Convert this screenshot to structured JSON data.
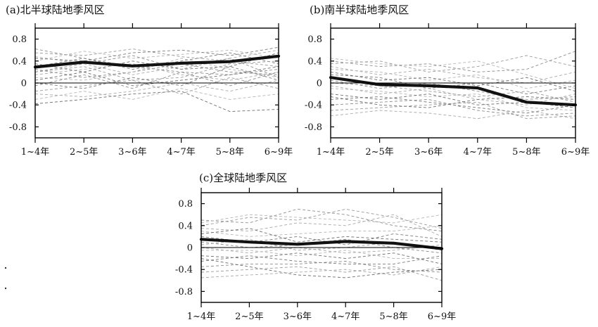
{
  "chart_data": [
    {
      "type": "line",
      "title": "(a)北半球陆地季风区",
      "categories": [
        "1~4年",
        "2~5年",
        "3~6年",
        "4~7年",
        "5~8年",
        "6~9年"
      ],
      "ylim": [
        -1.0,
        1.0
      ],
      "yticks": [
        0.8,
        0.4,
        0,
        -0.4,
        -0.8
      ],
      "ytick_labels": [
        "0.8",
        "0.4",
        "0",
        "-0.4",
        "-0.8"
      ],
      "grid": false,
      "series": [
        {
          "values": [
            0.29,
            0.38,
            0.31,
            0.36,
            0.39,
            0.49
          ],
          "style": "bold"
        },
        {
          "values": [
            0.62,
            0.45,
            0.3,
            0.2,
            0.15,
            0.25
          ],
          "style": "dashed"
        },
        {
          "values": [
            0.55,
            0.5,
            0.62,
            0.48,
            0.4,
            0.3
          ],
          "style": "dashed"
        },
        {
          "values": [
            0.48,
            0.35,
            0.15,
            0.3,
            0.45,
            0.6
          ],
          "style": "dashed"
        },
        {
          "values": [
            0.4,
            0.58,
            0.45,
            0.52,
            0.6,
            0.45
          ],
          "style": "dashed"
        },
        {
          "values": [
            0.35,
            0.2,
            0.4,
            0.25,
            0.3,
            0.55
          ],
          "style": "dashed"
        },
        {
          "values": [
            0.3,
            0.45,
            0.25,
            0.4,
            0.55,
            0.35
          ],
          "style": "dashed"
        },
        {
          "values": [
            0.25,
            0.1,
            0.2,
            0.35,
            0.2,
            0.15
          ],
          "style": "dashed"
        },
        {
          "values": [
            0.2,
            0.3,
            0.05,
            0.1,
            0.35,
            0.4
          ],
          "style": "dashed"
        },
        {
          "values": [
            0.15,
            0.25,
            0.35,
            0.15,
            0.05,
            0.2
          ],
          "style": "dashed"
        },
        {
          "values": [
            0.1,
            0.05,
            0.2,
            0.45,
            0.25,
            0.1
          ],
          "style": "dashed"
        },
        {
          "values": [
            0.05,
            0.2,
            -0.05,
            0.05,
            0.15,
            0.3
          ],
          "style": "dashed"
        },
        {
          "values": [
            0.0,
            -0.1,
            0.1,
            -0.05,
            0.3,
            0.05
          ],
          "style": "dashed"
        },
        {
          "values": [
            -0.05,
            0.15,
            -0.1,
            0.2,
            -0.05,
            0.2
          ],
          "style": "dashed"
        },
        {
          "values": [
            -0.15,
            -0.05,
            0.05,
            -0.2,
            0.1,
            -0.1
          ],
          "style": "dashed"
        },
        {
          "values": [
            -0.2,
            -0.25,
            -0.15,
            0.0,
            -0.15,
            0.05
          ],
          "style": "dashed"
        },
        {
          "values": [
            -0.3,
            -0.15,
            -0.3,
            -0.1,
            -0.3,
            -0.2
          ],
          "style": "dashed"
        },
        {
          "values": [
            -0.38,
            -0.3,
            -0.2,
            -0.15,
            -0.52,
            -0.48
          ],
          "style": "dashed"
        },
        {
          "values": [
            0.45,
            0.4,
            0.55,
            0.6,
            0.5,
            0.65
          ],
          "style": "dashed"
        },
        {
          "values": [
            0.2,
            0.35,
            0.5,
            0.25,
            0.45,
            0.1
          ],
          "style": "dashed"
        }
      ]
    },
    {
      "type": "line",
      "title": "(b)南半球陆地季风区",
      "categories": [
        "1~4年",
        "2~5年",
        "3~6年",
        "4~7年",
        "5~8年",
        "6~9年"
      ],
      "ylim": [
        -1.0,
        1.0
      ],
      "yticks": [
        0.8,
        0.4,
        0,
        -0.4,
        -0.8
      ],
      "ytick_labels": [
        "0.8",
        "0.4",
        "0",
        "-0.4",
        "-0.8"
      ],
      "grid": false,
      "series": [
        {
          "values": [
            0.1,
            -0.03,
            -0.05,
            -0.09,
            -0.35,
            -0.4
          ],
          "style": "bold"
        },
        {
          "values": [
            0.4,
            0.3,
            0.35,
            0.2,
            0.25,
            0.58
          ],
          "style": "dashed"
        },
        {
          "values": [
            0.35,
            0.4,
            0.2,
            0.3,
            0.5,
            0.3
          ],
          "style": "dashed"
        },
        {
          "values": [
            0.3,
            0.15,
            0.25,
            0.1,
            0.0,
            0.2
          ],
          "style": "dashed"
        },
        {
          "values": [
            0.25,
            0.2,
            0.05,
            0.15,
            -0.1,
            0.05
          ],
          "style": "dashed"
        },
        {
          "values": [
            0.2,
            0.05,
            0.1,
            -0.05,
            0.1,
            -0.15
          ],
          "style": "dashed"
        },
        {
          "values": [
            0.15,
            0.1,
            -0.1,
            0.0,
            -0.2,
            -0.05
          ],
          "style": "dashed"
        },
        {
          "values": [
            0.05,
            -0.1,
            0.0,
            -0.15,
            -0.3,
            -0.25
          ],
          "style": "dashed"
        },
        {
          "values": [
            0.0,
            -0.05,
            -0.15,
            -0.25,
            -0.15,
            -0.35
          ],
          "style": "dashed"
        },
        {
          "values": [
            -0.05,
            -0.2,
            -0.1,
            -0.3,
            -0.4,
            -0.2
          ],
          "style": "dashed"
        },
        {
          "values": [
            -0.1,
            -0.15,
            -0.25,
            -0.2,
            -0.45,
            -0.5
          ],
          "style": "dashed"
        },
        {
          "values": [
            -0.2,
            -0.3,
            -0.2,
            -0.4,
            -0.35,
            -0.45
          ],
          "style": "dashed"
        },
        {
          "values": [
            -0.3,
            -0.25,
            -0.35,
            -0.45,
            -0.55,
            -0.4
          ],
          "style": "dashed"
        },
        {
          "values": [
            -0.4,
            -0.35,
            -0.3,
            -0.5,
            -0.6,
            -0.55
          ],
          "style": "dashed"
        },
        {
          "values": [
            -0.5,
            -0.45,
            -0.4,
            -0.35,
            -0.65,
            -0.6
          ],
          "style": "dashed"
        },
        {
          "values": [
            -0.6,
            -0.5,
            -0.55,
            -0.65,
            -0.5,
            -0.65
          ],
          "style": "dashed"
        },
        {
          "values": [
            0.45,
            0.35,
            0.3,
            0.4,
            0.15,
            -0.1
          ],
          "style": "dashed"
        },
        {
          "values": [
            -0.25,
            -0.4,
            -0.45,
            -0.3,
            -0.25,
            -0.3
          ],
          "style": "dashed"
        }
      ]
    },
    {
      "type": "line",
      "title": "(c)全球陆地季风区",
      "categories": [
        "1~4年",
        "2~5年",
        "3~6年",
        "4~7年",
        "5~8年",
        "6~9年"
      ],
      "ylim": [
        -1.0,
        1.0
      ],
      "yticks": [
        0.8,
        0.4,
        0,
        -0.4,
        -0.8
      ],
      "ytick_labels": [
        "0.8",
        "0.4",
        "0",
        "-0.4",
        "-0.8"
      ],
      "grid": false,
      "series": [
        {
          "values": [
            0.15,
            0.1,
            0.06,
            0.11,
            0.08,
            -0.02
          ],
          "style": "bold"
        },
        {
          "values": [
            0.5,
            0.45,
            0.7,
            0.6,
            0.4,
            0.3
          ],
          "style": "dashed"
        },
        {
          "values": [
            0.4,
            0.55,
            0.5,
            0.7,
            0.55,
            0.35
          ],
          "style": "dashed"
        },
        {
          "values": [
            0.35,
            0.3,
            0.45,
            0.4,
            0.6,
            0.2
          ],
          "style": "dashed"
        },
        {
          "values": [
            0.3,
            0.2,
            0.25,
            0.3,
            0.3,
            0.4
          ],
          "style": "dashed"
        },
        {
          "values": [
            0.25,
            0.35,
            0.1,
            0.2,
            0.15,
            0.1
          ],
          "style": "dashed"
        },
        {
          "values": [
            0.2,
            0.1,
            0.2,
            0.05,
            0.25,
            0.15
          ],
          "style": "dashed"
        },
        {
          "values": [
            0.1,
            0.0,
            0.05,
            0.15,
            0.0,
            -0.1
          ],
          "style": "dashed"
        },
        {
          "values": [
            0.05,
            0.15,
            -0.05,
            0.0,
            0.1,
            -0.05
          ],
          "style": "dashed"
        },
        {
          "values": [
            0.0,
            -0.1,
            0.0,
            -0.1,
            -0.05,
            0.05
          ],
          "style": "dashed"
        },
        {
          "values": [
            -0.05,
            -0.05,
            -0.15,
            -0.05,
            -0.2,
            -0.2
          ],
          "style": "dashed"
        },
        {
          "values": [
            -0.15,
            -0.2,
            -0.1,
            -0.2,
            -0.1,
            -0.3
          ],
          "style": "dashed"
        },
        {
          "values": [
            -0.25,
            -0.15,
            -0.25,
            -0.3,
            -0.3,
            -0.15
          ],
          "style": "dashed"
        },
        {
          "values": [
            -0.35,
            -0.3,
            -0.3,
            -0.25,
            -0.4,
            -0.45
          ],
          "style": "dashed"
        },
        {
          "values": [
            -0.45,
            -0.4,
            -0.35,
            -0.45,
            -0.35,
            -0.6
          ],
          "style": "dashed"
        },
        {
          "values": [
            -0.55,
            -0.5,
            -0.45,
            -0.4,
            -0.5,
            -0.35
          ],
          "style": "dashed"
        },
        {
          "values": [
            0.45,
            0.6,
            0.55,
            0.5,
            0.45,
            0.6
          ],
          "style": "dashed"
        },
        {
          "values": [
            -0.2,
            -0.35,
            -0.5,
            -0.55,
            -0.45,
            -0.4
          ],
          "style": "dashed"
        }
      ]
    }
  ]
}
